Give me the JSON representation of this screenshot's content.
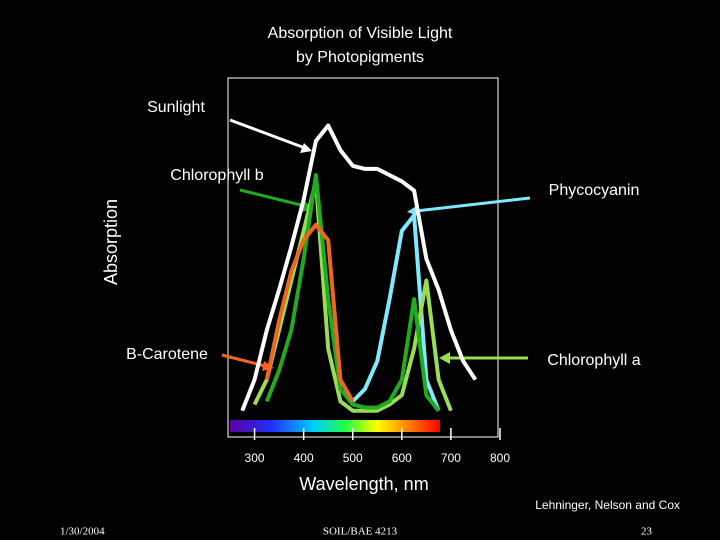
{
  "chart_data": {
    "type": "line",
    "title": [
      "Absorption of Visible Light",
      "by Photopigments"
    ],
    "y_label": "Absorption",
    "x_label": "Wavelength, nm",
    "source": "Lehninger, Nelson and Cox",
    "x": [
      275,
      300,
      325,
      350,
      375,
      400,
      425,
      450,
      475,
      500,
      525,
      550,
      575,
      600,
      625,
      650,
      675,
      700,
      725,
      750
    ],
    "xlim": [
      250,
      800
    ],
    "xticks": [
      300,
      400,
      500,
      600,
      700,
      800
    ],
    "ylim": [
      0,
      100
    ],
    "series": [
      {
        "name": "Sunlight",
        "color": "#ffffff",
        "values": [
          3,
          13,
          29,
          42,
          56,
          71,
          90,
          95,
          87,
          82,
          81,
          81,
          79,
          77,
          74,
          52,
          42,
          29,
          19,
          13
        ]
      },
      {
        "name": "Phycocyanin",
        "color": "#80e8ff",
        "values": [
          null,
          null,
          null,
          null,
          null,
          null,
          null,
          null,
          null,
          6,
          10,
          19,
          39,
          61,
          66,
          13,
          3,
          null,
          null,
          null
        ]
      },
      {
        "name": "Chlorophyll a",
        "color": "#9adc55",
        "values": [
          null,
          5,
          13,
          29,
          45,
          61,
          77,
          23,
          6,
          3,
          3,
          3,
          5,
          8,
          23,
          45,
          13,
          3,
          null,
          null
        ]
      },
      {
        "name": "Chlorophyll b",
        "color": "#22aa22",
        "values": [
          null,
          null,
          6,
          16,
          29,
          52,
          79,
          39,
          10,
          5,
          4,
          4,
          6,
          13,
          39,
          8,
          3,
          null,
          null,
          null
        ]
      },
      {
        "name": "B-Carotene",
        "color": "#ee6622",
        "values": [
          null,
          null,
          13,
          32,
          48,
          58,
          63,
          58,
          13,
          6,
          null,
          null,
          null,
          null,
          null,
          null,
          null,
          null,
          null,
          null
        ]
      }
    ]
  },
  "footer": {
    "date": "1/30/2004",
    "course": "SOIL/BAE 4213",
    "page": "23"
  }
}
